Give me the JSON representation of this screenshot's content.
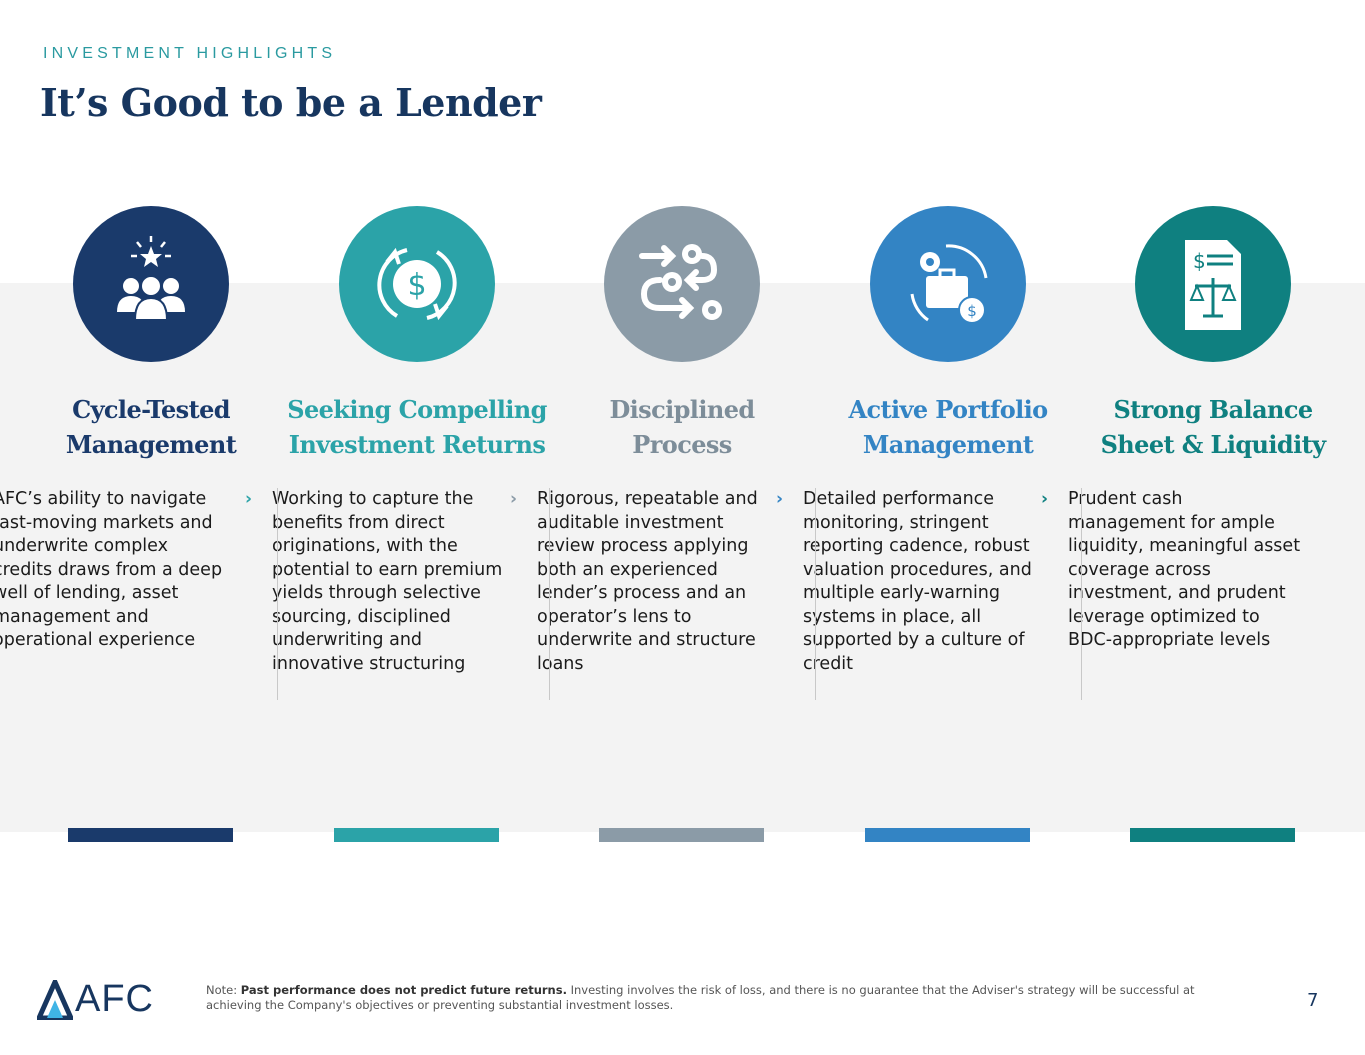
{
  "header": {
    "eyebrow": "INVESTMENT HIGHLIGHTS",
    "title": "It’s Good to be a Lender"
  },
  "colors": {
    "navy": "#1a3a6b",
    "teal": "#2ba3a8",
    "gray": "#8b9ba7",
    "blue": "#3384c4",
    "dark_teal": "#0f8080"
  },
  "columns": [
    {
      "icon": "team-star-icon",
      "color": "#1a3a6b",
      "title1": "Cycle-Tested",
      "title2": "Management",
      "text": "AFC’s ability to navigate fast-moving markets and underwrite complex credits draws from a deep well of lending, asset management and operational experience"
    },
    {
      "icon": "dollar-cycle-icon",
      "color": "#2ba3a8",
      "title1": "Seeking Compelling",
      "title2": "Investment Returns",
      "text": "Working to capture the benefits from direct originations, with the potential to earn premium yields through selective sourcing, disciplined underwriting and innovative structuring"
    },
    {
      "icon": "process-gears-icon",
      "color": "#8b9ba7",
      "title1": "Disciplined",
      "title2": "Process",
      "text": "Rigorous, repeatable and auditable investment review process applying both an experienced lender’s process and an operator’s lens to underwrite and structure loans"
    },
    {
      "icon": "portfolio-briefcase-icon",
      "color": "#3384c4",
      "title1": "Active Portfolio",
      "title2": "Management",
      "text": "Detailed performance monitoring, stringent reporting cadence, robust valuation procedures, and multiple early-warning systems in place, all supported by a culture of credit"
    },
    {
      "icon": "balance-sheet-icon",
      "color": "#0f8080",
      "title1": "Strong Balance",
      "title2": "Sheet & Liquidity",
      "text": "Prudent cash management for ample liquidity, meaningful asset coverage across investment, and prudent leverage optimized to BDC-appropriate levels"
    }
  ],
  "footer": {
    "logo": "AFC",
    "note_prefix": "Note: ",
    "note_bold": "Past performance does not predict future returns.",
    "note_rest": " Investing involves the risk of loss, and there is no guarantee that the Adviser's strategy will be successful at achieving the Company's objectives or preventing substantial investment losses.",
    "page": "7"
  }
}
